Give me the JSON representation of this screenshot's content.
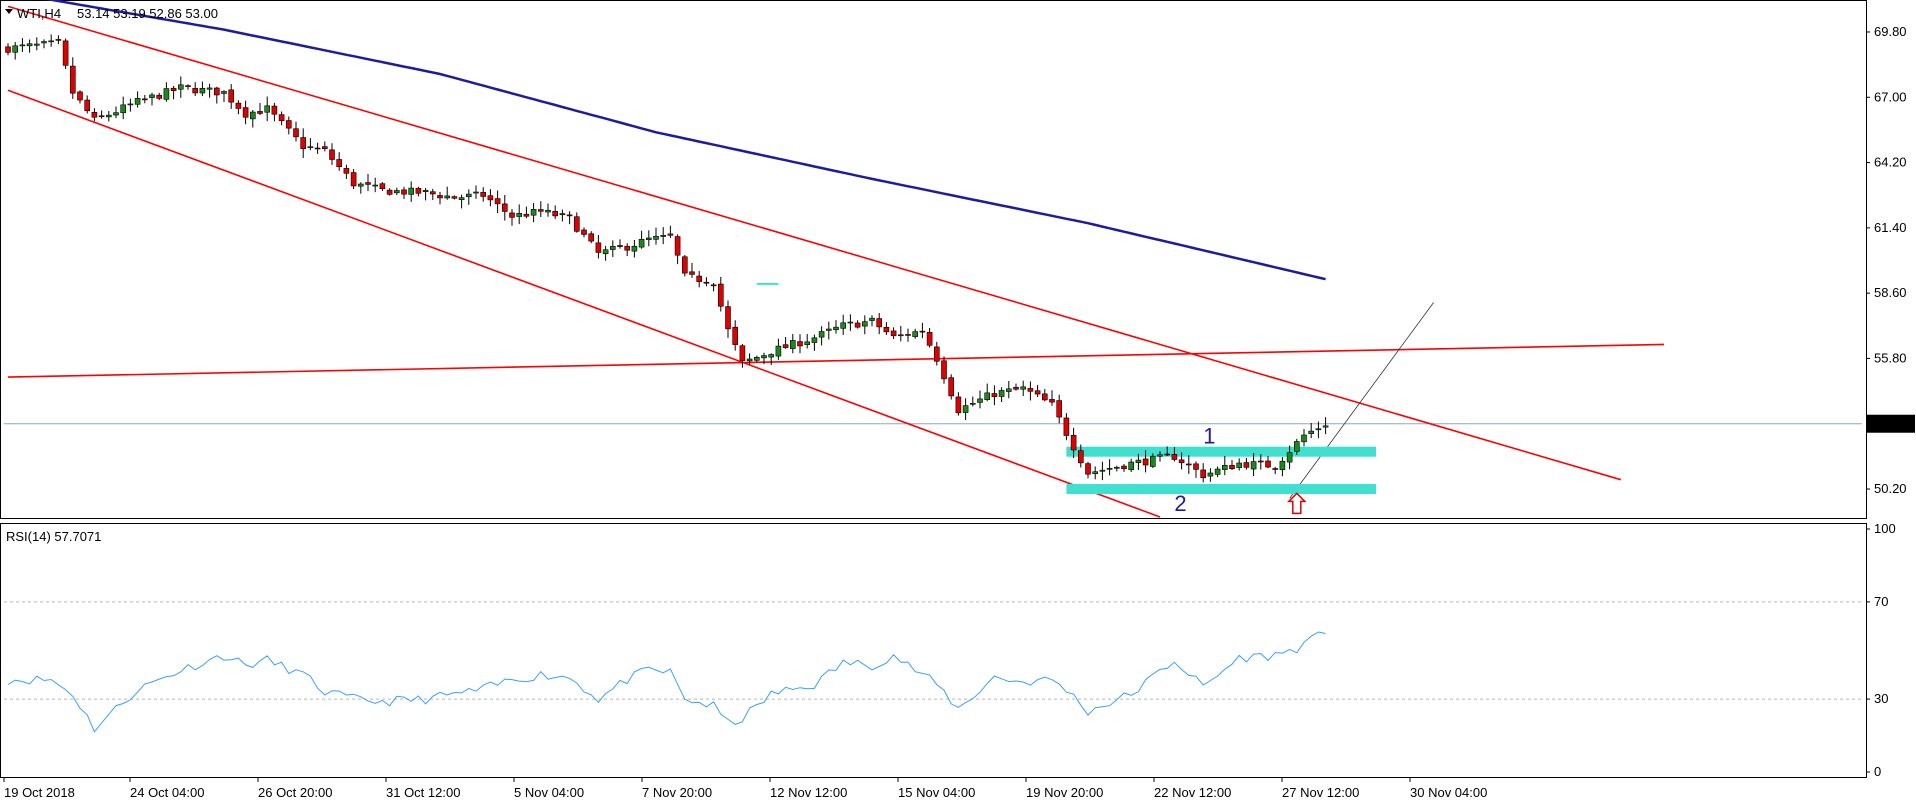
{
  "header": {
    "symbol": "WTI,H4",
    "ohlc": "53.14 53.19 52.86 53.00",
    "indicator": "RSI(14) 57.7071"
  },
  "colors": {
    "bull": "#1a8a1a",
    "bear": "#e00000",
    "sma": "#1c1ca0",
    "trend": "#ff0000",
    "zone": "#40e0d0",
    "rsi": "#3aa0ff",
    "grid": "#b8b8b8",
    "price_marker_bg": "#000000"
  },
  "chart_data": [
    {
      "type": "candlestick",
      "symbol": "WTI",
      "timeframe": "H4",
      "ylim": [
        49.0,
        71.0
      ],
      "yticks": [
        "69.80",
        "67.00",
        "64.20",
        "61.40",
        "58.60",
        "55.80",
        "53.00",
        "50.20"
      ],
      "current_price": "53.00",
      "x_tick_labels": [
        "19 Oct 2018",
        "24 Oct 04:00",
        "26 Oct 20:00",
        "31 Oct 12:00",
        "5 Nov 04:00",
        "7 Nov 20:00",
        "12 Nov 12:00",
        "15 Nov 04:00",
        "19 Nov 20:00",
        "22 Nov 12:00",
        "27 Nov 12:00",
        "30 Nov 04:00"
      ],
      "close_path": [
        [
          0,
          69.1
        ],
        [
          7,
          69.3
        ],
        [
          9,
          67.2
        ],
        [
          12,
          66.0
        ],
        [
          18,
          66.8
        ],
        [
          24,
          67.4
        ],
        [
          30,
          67.2
        ],
        [
          33,
          66.3
        ],
        [
          36,
          66.5
        ],
        [
          41,
          64.9
        ],
        [
          44,
          64.7
        ],
        [
          48,
          63.3
        ],
        [
          52,
          63.0
        ],
        [
          58,
          62.9
        ],
        [
          62,
          62.7
        ],
        [
          66,
          62.8
        ],
        [
          70,
          61.9
        ],
        [
          74,
          62.1
        ],
        [
          78,
          61.8
        ],
        [
          82,
          60.3
        ],
        [
          86,
          60.6
        ],
        [
          89,
          60.9
        ],
        [
          92,
          61.0
        ],
        [
          94,
          59.3
        ],
        [
          98,
          59.1
        ],
        [
          100,
          57.0
        ],
        [
          102,
          55.6
        ],
        [
          106,
          56.1
        ],
        [
          112,
          56.7
        ],
        [
          116,
          57.2
        ],
        [
          120,
          57.4
        ],
        [
          123,
          56.7
        ],
        [
          127,
          57.0
        ],
        [
          129,
          55.8
        ],
        [
          132,
          53.6
        ],
        [
          137,
          54.3
        ],
        [
          141,
          54.5
        ],
        [
          145,
          53.8
        ],
        [
          147,
          52.6
        ],
        [
          150,
          50.9
        ],
        [
          156,
          51.3
        ],
        [
          162,
          51.6
        ],
        [
          166,
          50.8
        ],
        [
          171,
          51.3
        ],
        [
          176,
          51.2
        ],
        [
          180,
          52.5
        ],
        [
          183,
          53.0
        ]
      ],
      "moving_average": [
        [
          0,
          71.5
        ],
        [
          30,
          69.9
        ],
        [
          60,
          68.0
        ],
        [
          90,
          65.5
        ],
        [
          120,
          63.5
        ],
        [
          150,
          61.6
        ],
        [
          183,
          59.2
        ]
      ],
      "trendlines": [
        {
          "name": "channel-upper",
          "from": [
            0,
            70.9
          ],
          "to": [
            224,
            50.6
          ]
        },
        {
          "name": "channel-lower",
          "from": [
            0,
            67.3
          ],
          "to": [
            160,
            49.0
          ]
        },
        {
          "name": "horizontal-trend",
          "from": [
            0,
            55.0
          ],
          "to": [
            230,
            56.4
          ]
        },
        {
          "name": "thin-support",
          "from": [
            178,
            49.8
          ],
          "to": [
            198,
            58.2
          ]
        }
      ],
      "zones": [
        {
          "label": "1",
          "x": [
            147,
            190
          ],
          "y": 51.8
        },
        {
          "label": "2",
          "x": [
            147,
            190
          ],
          "y": 50.2
        }
      ],
      "marker_segment": {
        "x": [
          104,
          107
        ],
        "y": 59.0
      },
      "arrow": {
        "type": "up-arrow",
        "x": 179,
        "y": 49.5
      }
    },
    {
      "type": "line",
      "name": "RSI(14)",
      "value": "57.7071",
      "ylim": [
        0,
        100
      ],
      "yticks": [
        "100",
        "70",
        "30",
        "0"
      ],
      "levels": [
        70,
        30
      ],
      "path": [
        [
          0,
          38
        ],
        [
          6,
          38
        ],
        [
          9,
          32
        ],
        [
          12,
          18
        ],
        [
          18,
          34
        ],
        [
          24,
          42
        ],
        [
          30,
          48
        ],
        [
          33,
          44
        ],
        [
          36,
          46
        ],
        [
          41,
          40
        ],
        [
          44,
          33
        ],
        [
          48,
          30
        ],
        [
          52,
          29
        ],
        [
          58,
          30
        ],
        [
          62,
          32
        ],
        [
          66,
          34
        ],
        [
          70,
          38
        ],
        [
          74,
          40
        ],
        [
          78,
          39
        ],
        [
          82,
          30
        ],
        [
          86,
          38
        ],
        [
          89,
          42
        ],
        [
          92,
          41
        ],
        [
          94,
          30
        ],
        [
          98,
          27
        ],
        [
          100,
          20
        ],
        [
          102,
          22
        ],
        [
          106,
          32
        ],
        [
          112,
          36
        ],
        [
          116,
          45
        ],
        [
          120,
          44
        ],
        [
          123,
          48
        ],
        [
          127,
          40
        ],
        [
          129,
          36
        ],
        [
          132,
          26
        ],
        [
          137,
          39
        ],
        [
          141,
          37
        ],
        [
          145,
          38
        ],
        [
          147,
          34
        ],
        [
          150,
          25
        ],
        [
          156,
          32
        ],
        [
          162,
          46
        ],
        [
          166,
          35
        ],
        [
          171,
          47
        ],
        [
          176,
          48
        ],
        [
          180,
          52
        ],
        [
          183,
          58
        ]
      ]
    }
  ]
}
